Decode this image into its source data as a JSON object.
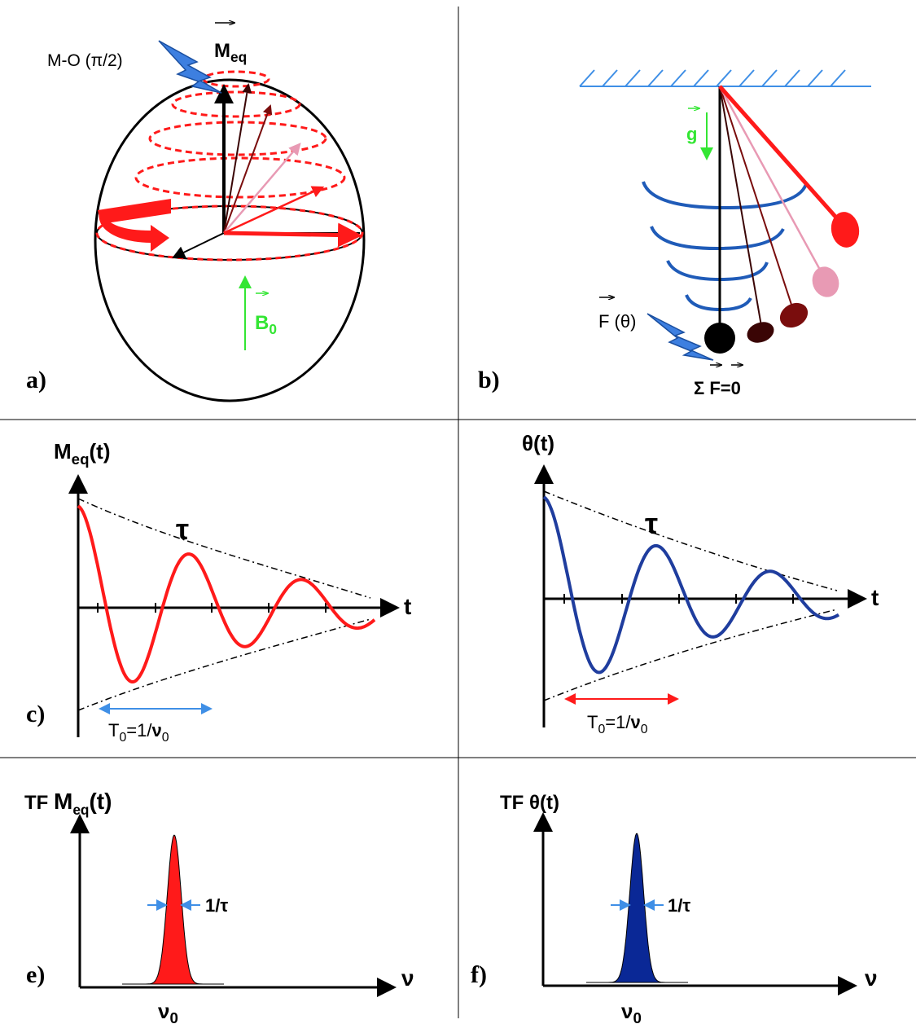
{
  "colors": {
    "red": "#ff1a1a",
    "blue": "#1f3d9e",
    "navy": "#0a2896",
    "green": "#33e633",
    "lightblue": "#3f8fe6",
    "pink": "#e89ab4",
    "maroon": "#7a0d0d",
    "darkbrown": "#3a0505",
    "pulse": "#3d7fe0"
  },
  "panels": {
    "a": {
      "label": "a)",
      "pulse_label": "M-O (π/2)",
      "meq_main": "M",
      "meq_sub": "eq",
      "b0_main": "B",
      "b0_sub": "0"
    },
    "b": {
      "label": "b)",
      "g_label": "g",
      "force_label": "F (θ)",
      "sum_label": "Σ F=0"
    },
    "c": {
      "label": "c)",
      "ylabel_main": "M",
      "ylabel_sub": "eq",
      "ylabel_suffix": "(t)",
      "xlabel": "t",
      "tau": "τ",
      "period_main": "T",
      "period_sub": "0",
      "period_mid": "=1/",
      "period_nu": "ν",
      "period_nu_sub": "0"
    },
    "d": {
      "ylabel": "θ(t)",
      "xlabel": "t",
      "tau": "τ",
      "period_main": "T",
      "period_sub": "0",
      "period_mid": "=1/",
      "period_nu": "ν",
      "period_nu_sub": "0"
    },
    "e": {
      "label": "e)",
      "ylabel_prefix": "TF ",
      "ylabel_main": "M",
      "ylabel_sub": "eq",
      "ylabel_suffix": "(t)",
      "xlabel": "ν",
      "width_label": "1/τ",
      "peak_main": "ν",
      "peak_sub": "0"
    },
    "f": {
      "label": "f)",
      "ylabel": "TF θ(t)",
      "xlabel": "ν",
      "width_label": "1/τ",
      "peak_main": "ν",
      "peak_sub": "0"
    }
  }
}
